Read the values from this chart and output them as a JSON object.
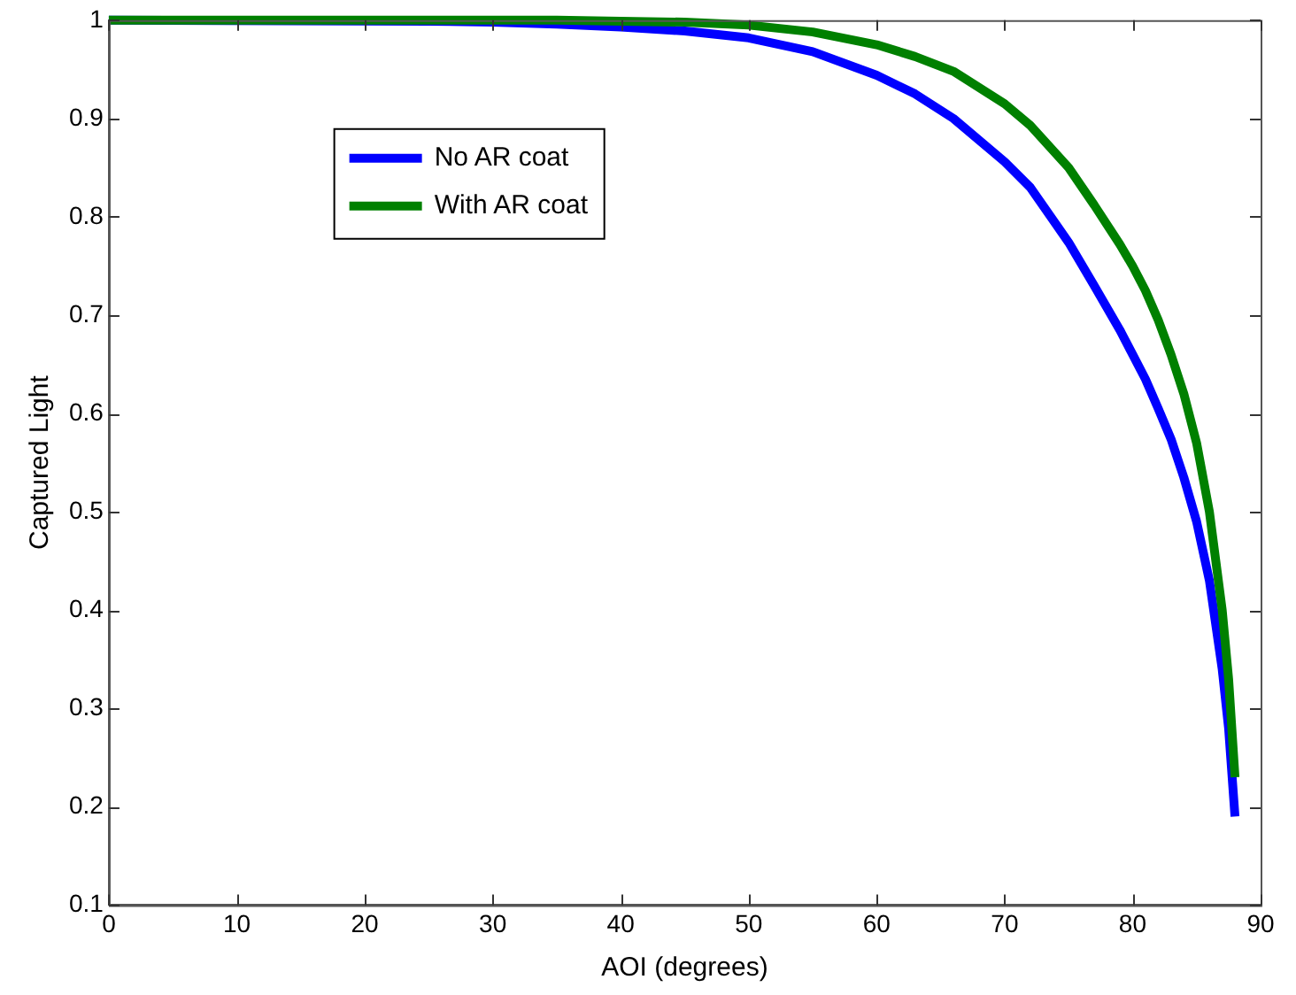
{
  "chart_data": {
    "type": "line",
    "xlabel": "AOI (degrees)",
    "ylabel": "Captured Light",
    "xlim": [
      0,
      90
    ],
    "xticks": [
      0,
      10,
      20,
      30,
      40,
      50,
      60,
      70,
      80,
      90
    ],
    "ylim": [
      0.1,
      1
    ],
    "yticks": [
      0.1,
      0.2,
      0.3,
      0.4,
      0.5,
      0.6,
      0.7,
      0.8,
      0.9,
      1
    ],
    "grid": false,
    "legend": "top left",
    "marker": "none",
    "line_style": "solid",
    "series": [
      {
        "name": "No AR coat",
        "color": "#0000ff",
        "x": [
          0,
          25,
          30,
          35,
          40,
          45,
          50,
          55,
          60,
          63,
          66,
          70,
          72,
          75,
          77,
          79,
          80,
          81,
          82,
          83,
          84,
          85,
          86,
          87,
          87.5,
          88
        ],
        "values": [
          1,
          0.999,
          0.998,
          0.996,
          0.993,
          0.989,
          0.982,
          0.968,
          0.944,
          0.925,
          0.9,
          0.856,
          0.83,
          0.774,
          0.73,
          0.685,
          0.66,
          0.635,
          0.605,
          0.574,
          0.535,
          0.49,
          0.43,
          0.34,
          0.28,
          0.19
        ]
      },
      {
        "name": "With AR coat",
        "color": "#008000",
        "x": [
          0,
          10,
          20,
          30,
          35,
          40,
          45,
          50,
          55,
          60,
          63,
          66,
          70,
          72,
          75,
          77,
          79,
          80,
          81,
          82,
          83,
          84,
          85,
          86,
          87,
          87.5,
          88
        ],
        "values": [
          1,
          1,
          1,
          1,
          1,
          0.999,
          0.998,
          0.995,
          0.988,
          0.975,
          0.963,
          0.948,
          0.915,
          0.893,
          0.85,
          0.812,
          0.772,
          0.75,
          0.725,
          0.695,
          0.66,
          0.62,
          0.57,
          0.5,
          0.4,
          0.33,
          0.23
        ]
      }
    ]
  }
}
